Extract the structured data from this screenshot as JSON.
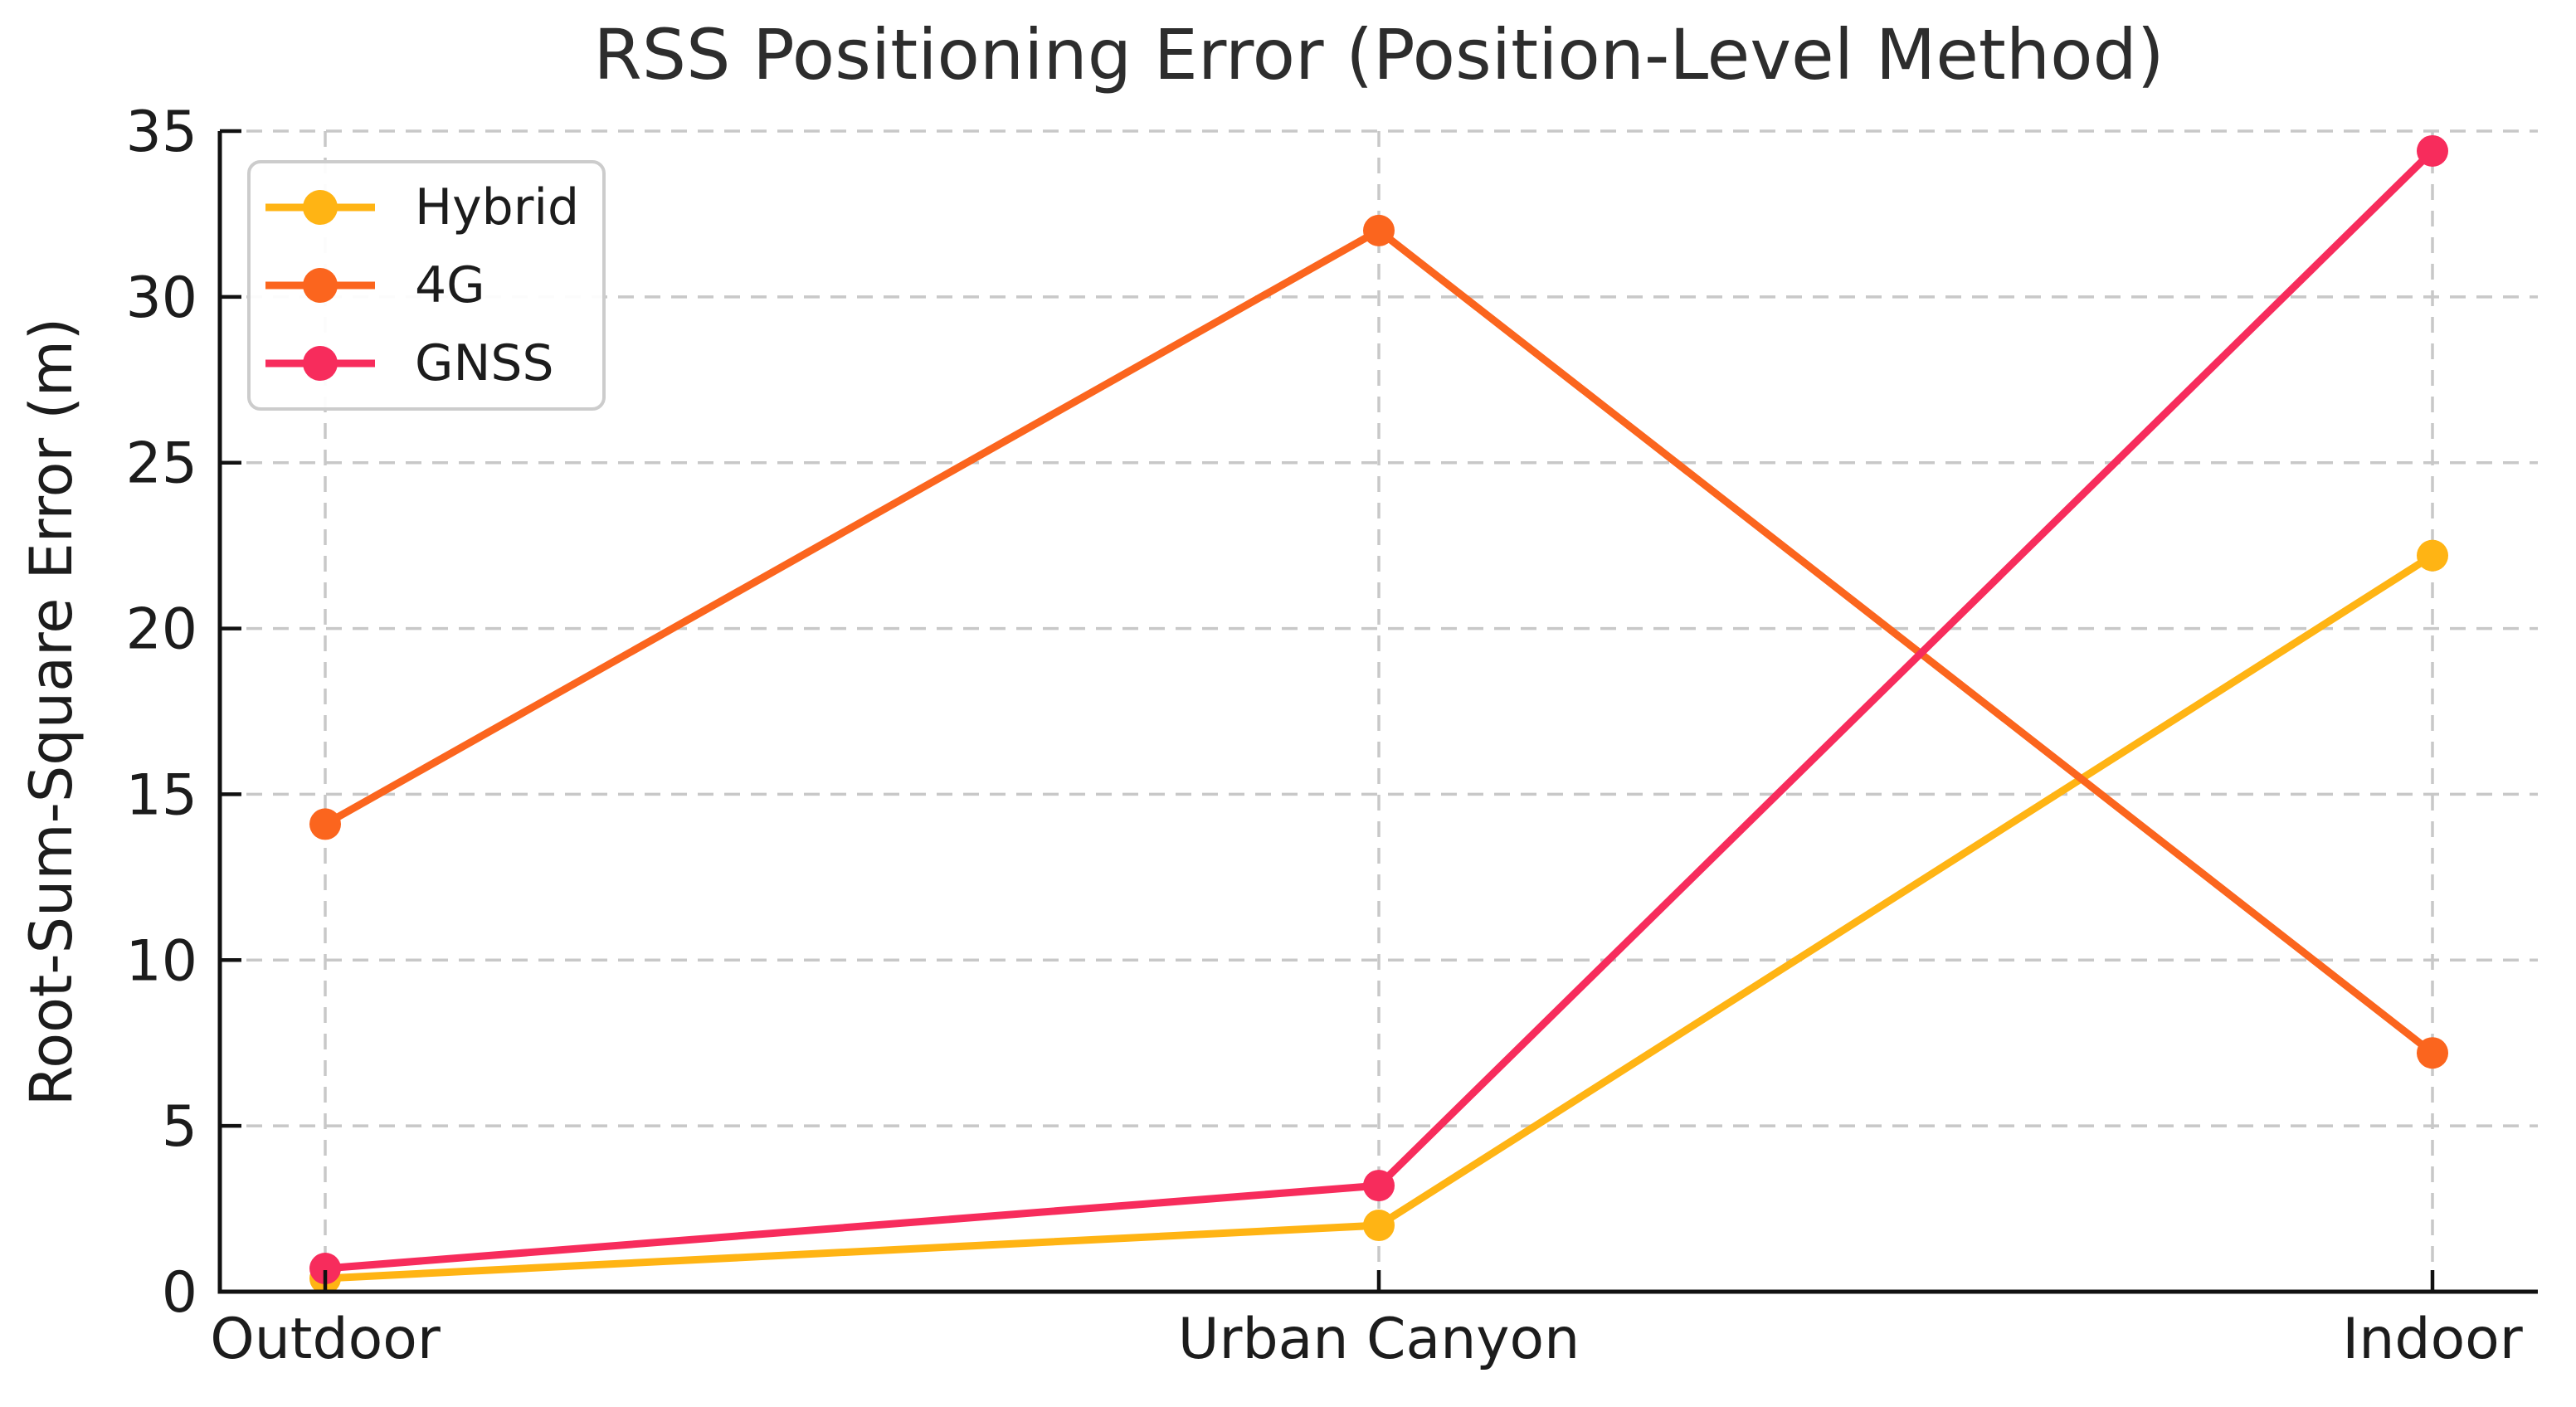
{
  "title": "RSS Positioning Error (Position-Level Method)",
  "chart_data": {
    "type": "line",
    "title": "RSS Positioning Error (Position-Level Method)",
    "xlabel": "",
    "ylabel": "Root-Sum-Square Error (m)",
    "categories": [
      "Outdoor",
      "Urban Canyon",
      "Indoor"
    ],
    "ylim": [
      0,
      35
    ],
    "yticks": [
      0,
      5,
      10,
      15,
      20,
      25,
      30,
      35
    ],
    "grid": true,
    "grid_style": "dashed",
    "legend_position": "upper left",
    "marker": "circle",
    "series": [
      {
        "name": "Hybrid",
        "color": "#FFB414",
        "values": [
          0.4,
          2.0,
          22.2
        ]
      },
      {
        "name": "4G",
        "color": "#FB651E",
        "values": [
          14.1,
          32.0,
          7.2
        ]
      },
      {
        "name": "GNSS",
        "color": "#F72C5C",
        "values": [
          0.7,
          3.2,
          34.4
        ]
      }
    ]
  },
  "colors": {
    "text": "#1c1c1c",
    "title_text": "#2d2d2d",
    "spine": "#111111",
    "grid": "#c8c8c8",
    "legend_border": "#cccccc",
    "background": "#ffffff"
  }
}
